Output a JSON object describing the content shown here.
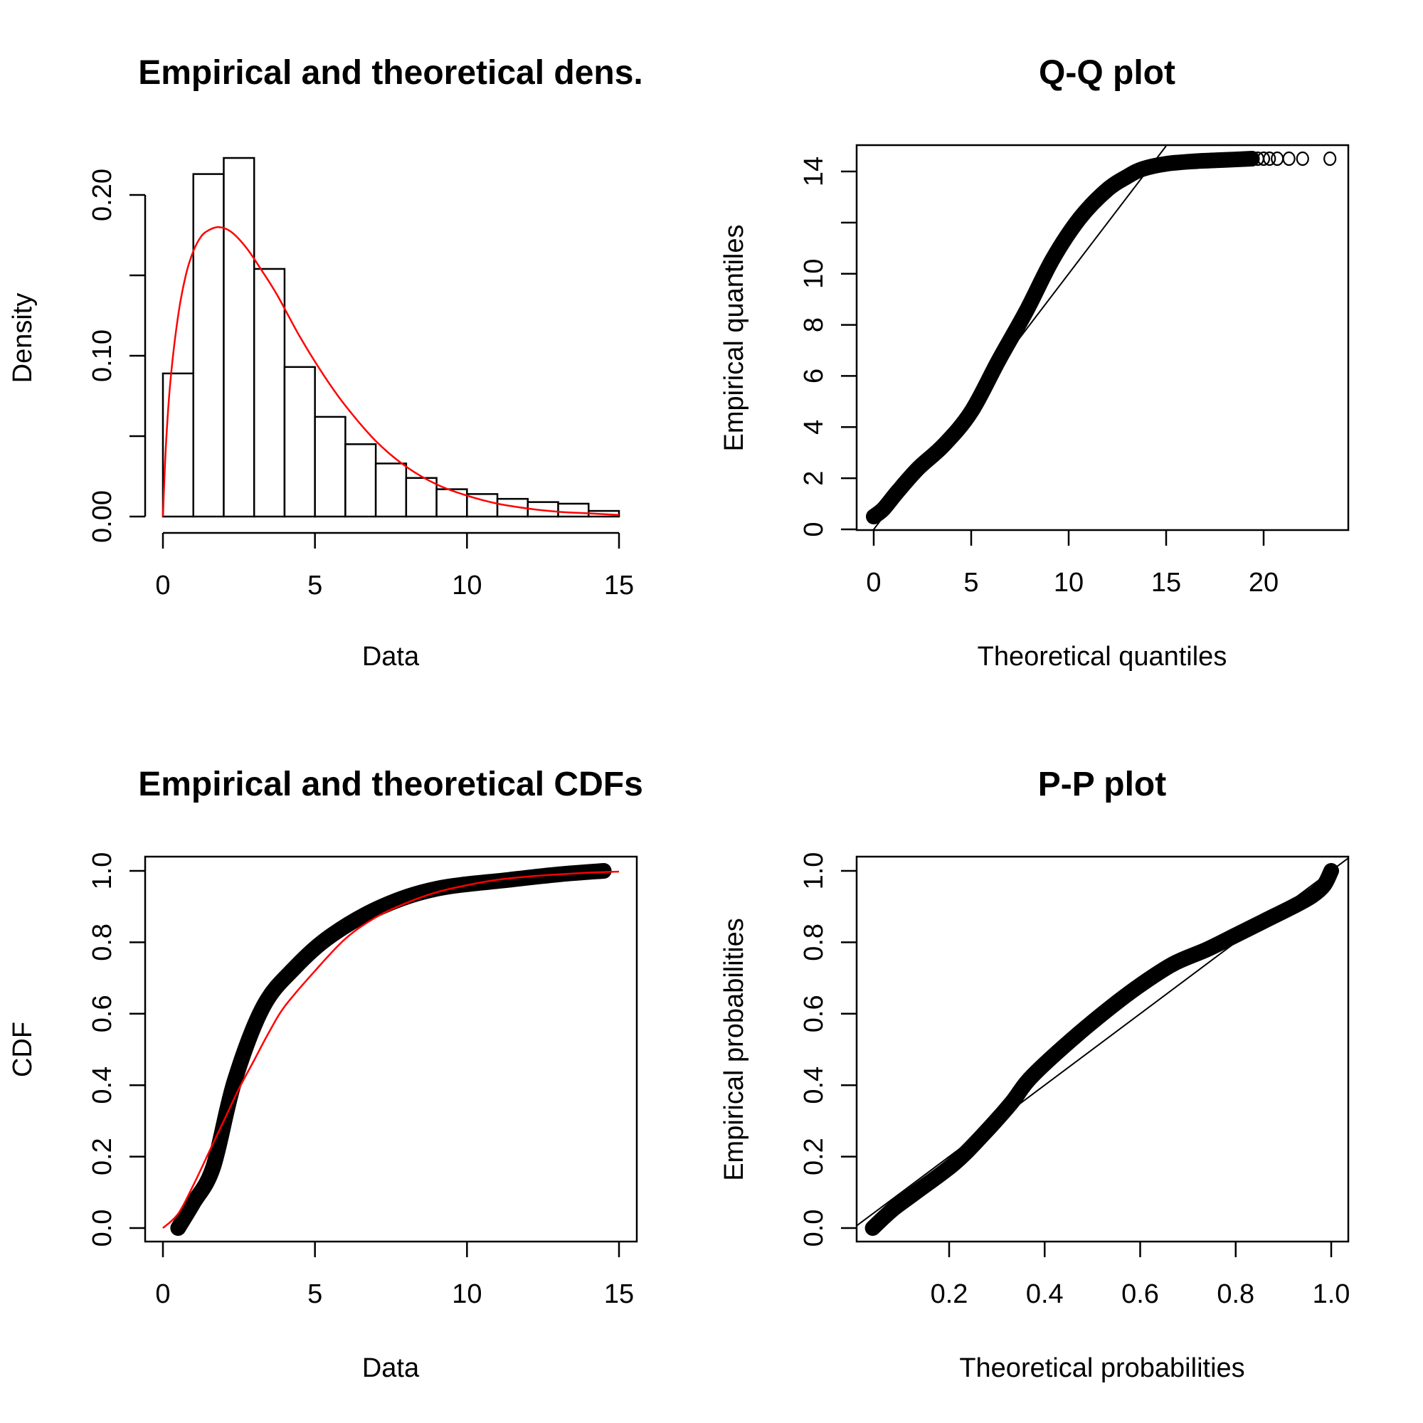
{
  "chart_data": [
    {
      "id": "density",
      "type": "bar",
      "title": "Empirical and theoretical dens.",
      "xlabel": "Data",
      "ylabel": "Density",
      "xlim": [
        0,
        15
      ],
      "ylim": [
        0,
        0.2
      ],
      "xticks": [
        0,
        5,
        10,
        15
      ],
      "xtick_labels": [
        "0",
        "5",
        "10",
        "15"
      ],
      "yticks": [
        0,
        0.05,
        0.1,
        0.15,
        0.2
      ],
      "ytick_labels": [
        "0.00",
        "",
        "0.10",
        "",
        "0.20"
      ],
      "bins": {
        "edges": [
          0,
          1,
          2,
          3,
          4,
          5,
          6,
          7,
          8,
          9,
          10,
          11,
          12,
          13,
          14,
          15
        ],
        "values": [
          0.089,
          0.213,
          0.223,
          0.154,
          0.093,
          0.062,
          0.045,
          0.033,
          0.024,
          0.017,
          0.014,
          0.011,
          0.009,
          0.008,
          0.0035
        ]
      },
      "series": [
        {
          "name": "theoretical density",
          "color": "#ff0000",
          "x": [
            0,
            0.1,
            0.25,
            0.5,
            0.75,
            1.0,
            1.25,
            1.5,
            1.85,
            2.25,
            2.75,
            3.25,
            3.75,
            4.5,
            5.25,
            6.0,
            7.0,
            8.0,
            9.0,
            10.0,
            11.0,
            12.0,
            13.0,
            14.0,
            15.0
          ],
          "y": [
            0,
            0.045,
            0.085,
            0.125,
            0.15,
            0.165,
            0.174,
            0.178,
            0.18,
            0.177,
            0.167,
            0.153,
            0.138,
            0.112,
            0.089,
            0.069,
            0.047,
            0.031,
            0.02,
            0.013,
            0.008,
            0.005,
            0.003,
            0.002,
            0.001
          ]
        }
      ],
      "grid": false
    },
    {
      "id": "qq",
      "type": "scatter",
      "title": "Q-Q plot",
      "xlabel": "Theoretical quantiles",
      "ylabel": "Empirical quantiles",
      "xlim": [
        -0.9,
        24.3
      ],
      "ylim": [
        -0.05,
        15.0
      ],
      "xticks": [
        0,
        5,
        10,
        15,
        20
      ],
      "xtick_labels": [
        "0",
        "5",
        "10",
        "15",
        "20"
      ],
      "yticks": [
        0,
        2,
        4,
        6,
        8,
        10,
        12,
        14
      ],
      "ytick_labels": [
        "0",
        "2",
        "4",
        "6",
        "8",
        "10",
        "",
        "14"
      ],
      "series": [
        {
          "name": "empirical quantiles (dense)",
          "x": [
            0,
            0.5,
            1.25,
            2.3,
            3.6,
            5.0,
            6.4,
            7.8,
            9.2,
            10.6,
            12.0,
            13.0,
            13.8,
            15.0,
            16.5,
            18.0,
            19.4
          ],
          "y": [
            0.5,
            0.8,
            1.5,
            2.4,
            3.3,
            4.6,
            6.6,
            8.5,
            10.6,
            12.2,
            13.3,
            13.8,
            14.1,
            14.3,
            14.4,
            14.45,
            14.5
          ]
        },
        {
          "name": "empirical quantiles (upper tail points)",
          "x": [
            19.7,
            20.0,
            20.3,
            20.7,
            21.3,
            22.0,
            23.4
          ],
          "y": [
            14.5,
            14.5,
            14.5,
            14.5,
            14.5,
            14.5,
            14.5
          ]
        },
        {
          "name": "reference line y = x",
          "x": [
            -0.5,
            15.0
          ],
          "y": [
            -0.5,
            15.0
          ]
        }
      ],
      "grid": false
    },
    {
      "id": "cdf",
      "type": "line",
      "title": "Empirical and theoretical CDFs",
      "xlabel": "Data",
      "ylabel": "CDF",
      "xlim": [
        -0.75,
        15.75
      ],
      "ylim": [
        -0.04,
        1.04
      ],
      "xticks": [
        0,
        5,
        10,
        15
      ],
      "xtick_labels": [
        "0",
        "5",
        "10",
        "15"
      ],
      "yticks": [
        0,
        0.2,
        0.4,
        0.6,
        0.8,
        1.0
      ],
      "ytick_labels": [
        "0.0",
        "0.2",
        "0.4",
        "0.6",
        "0.8",
        "1.0"
      ],
      "series": [
        {
          "name": "empirical CDF",
          "color": "#000000",
          "x": [
            0.5,
            1.0,
            1.65,
            2.35,
            3.3,
            4.35,
            5.55,
            7.2,
            9.0,
            11.4,
            13.0,
            14.5
          ],
          "y": [
            0.0,
            0.07,
            0.17,
            0.41,
            0.62,
            0.73,
            0.82,
            0.9,
            0.95,
            0.975,
            0.99,
            1.0
          ]
        },
        {
          "name": "theoretical CDF",
          "color": "#ff0000",
          "x": [
            0,
            0.5,
            1.0,
            1.5,
            2.0,
            2.5,
            3.0,
            3.5,
            4.0,
            5.0,
            6.0,
            7.0,
            8.0,
            9.0,
            10.0,
            11.0,
            12.0,
            13.0,
            14.0,
            15.0
          ],
          "y": [
            0,
            0.04,
            0.12,
            0.21,
            0.3,
            0.39,
            0.47,
            0.55,
            0.62,
            0.72,
            0.81,
            0.87,
            0.91,
            0.94,
            0.96,
            0.975,
            0.984,
            0.99,
            0.995,
            0.998
          ]
        }
      ],
      "grid": false
    },
    {
      "id": "pp",
      "type": "scatter",
      "title": "P-P plot",
      "xlabel": "Theoretical probabilities",
      "ylabel": "Empirical probabilities",
      "xlim": [
        0.007,
        1.038
      ],
      "ylim": [
        -0.04,
        1.04
      ],
      "xticks": [
        0.2,
        0.4,
        0.6,
        0.8,
        1.0
      ],
      "xtick_labels": [
        "0.2",
        "0.4",
        "0.6",
        "0.8",
        "1.0"
      ],
      "yticks": [
        0,
        0.2,
        0.4,
        0.6,
        0.8,
        1.0
      ],
      "ytick_labels": [
        "0.0",
        "0.2",
        "0.4",
        "0.6",
        "0.8",
        "1.0"
      ],
      "series": [
        {
          "name": "empirical vs theoretical probabilities",
          "x": [
            0.04,
            0.08,
            0.13,
            0.21,
            0.27,
            0.33,
            0.37,
            0.45,
            0.54,
            0.6,
            0.67,
            0.74,
            0.8,
            0.86,
            0.92,
            0.96,
            0.985,
            1.0
          ],
          "y": [
            0.0,
            0.05,
            0.1,
            0.18,
            0.26,
            0.35,
            0.42,
            0.52,
            0.62,
            0.68,
            0.74,
            0.78,
            0.82,
            0.86,
            0.9,
            0.93,
            0.96,
            1.0
          ]
        },
        {
          "name": "reference line y = x",
          "x": [
            0.0,
            1.04
          ],
          "y": [
            0.0,
            1.04
          ]
        }
      ],
      "grid": false
    }
  ]
}
